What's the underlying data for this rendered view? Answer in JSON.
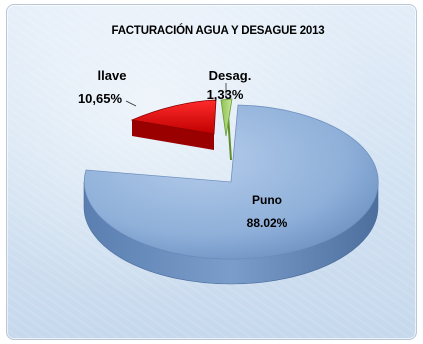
{
  "chart_data": {
    "type": "pie",
    "title": "FACTURACIÓN AGUA Y DESAGUE 2013",
    "slices": [
      {
        "name": "Puno",
        "value": 88.02,
        "label": "88.02%",
        "color": "#8fb0d9"
      },
      {
        "name": "llave",
        "value": 10.65,
        "label": "10,65%",
        "color": "#e01414"
      },
      {
        "name": "Desag.",
        "value": 1.33,
        "label": "1,33%",
        "color": "#9bcf5e"
      }
    ]
  }
}
